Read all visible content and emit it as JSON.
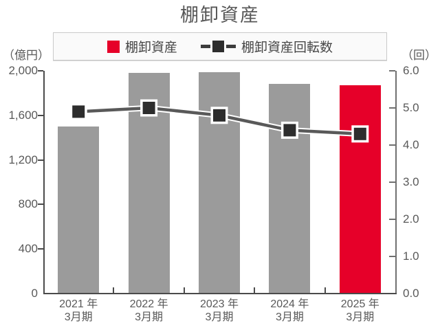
{
  "header": {
    "title": "棚卸資産"
  },
  "legend": {
    "items": [
      {
        "label": "棚卸資産",
        "type": "bar"
      },
      {
        "label": "棚卸資産回転数",
        "type": "line"
      }
    ]
  },
  "axes": {
    "left_unit": "（億円）",
    "right_unit": "（回）"
  },
  "colors": {
    "bar_default": "#9b9b9b",
    "bar_highlight": "#e60029",
    "line": "#595959",
    "line_casing": "#ffffff",
    "marker_fill": "#2d2d2d",
    "marker_border": "#ffffff",
    "axis_left": "#4a4a4a",
    "axis_right": "#6f6f6f",
    "text_gray": "#595959",
    "legend_dash": "#3d3d3d",
    "legend_square": "#2d2d2d"
  },
  "chart_data": {
    "type": "bar+line",
    "title": "棚卸資産",
    "categories": [
      "2021年3月期",
      "2022年3月期",
      "2023年3月期",
      "2024年3月期",
      "2025年3月期"
    ],
    "category_display_lines": [
      [
        "2021 年",
        "3月期"
      ],
      [
        "2022 年",
        "3月期"
      ],
      [
        "2023 年",
        "3月期"
      ],
      [
        "2024 年",
        "3月期"
      ],
      [
        "2025 年",
        "3月期"
      ]
    ],
    "series": [
      {
        "name": "棚卸資産",
        "type": "bar",
        "axis": "left",
        "unit": "億円",
        "values": [
          1500,
          1980,
          1990,
          1880,
          1870
        ],
        "point_colors": [
          "#9b9b9b",
          "#9b9b9b",
          "#9b9b9b",
          "#9b9b9b",
          "#e60029"
        ]
      },
      {
        "name": "棚卸資産回転数",
        "type": "line",
        "axis": "right",
        "unit": "回",
        "values": [
          4.9,
          5.0,
          4.8,
          4.4,
          4.3
        ],
        "color": "#595959",
        "marker": "square-black-white-outline"
      }
    ],
    "left_axis": {
      "unit_label": "（億円）",
      "min": 0,
      "max": 2000,
      "tick_values": [
        0,
        400,
        800,
        1200,
        1600,
        2000
      ],
      "tick_labels": [
        "0",
        "400",
        "800",
        "1,200",
        "1,600",
        "2,000"
      ]
    },
    "right_axis": {
      "unit_label": "（回）",
      "min": 0,
      "max": 6,
      "tick_values": [
        0,
        1,
        2,
        3,
        4,
        5,
        6
      ],
      "tick_labels": [
        "0.0",
        "1.0",
        "2.0",
        "3.0",
        "4.0",
        "5.0",
        "6.0"
      ]
    },
    "grid": false,
    "legend_position": "top-center"
  }
}
